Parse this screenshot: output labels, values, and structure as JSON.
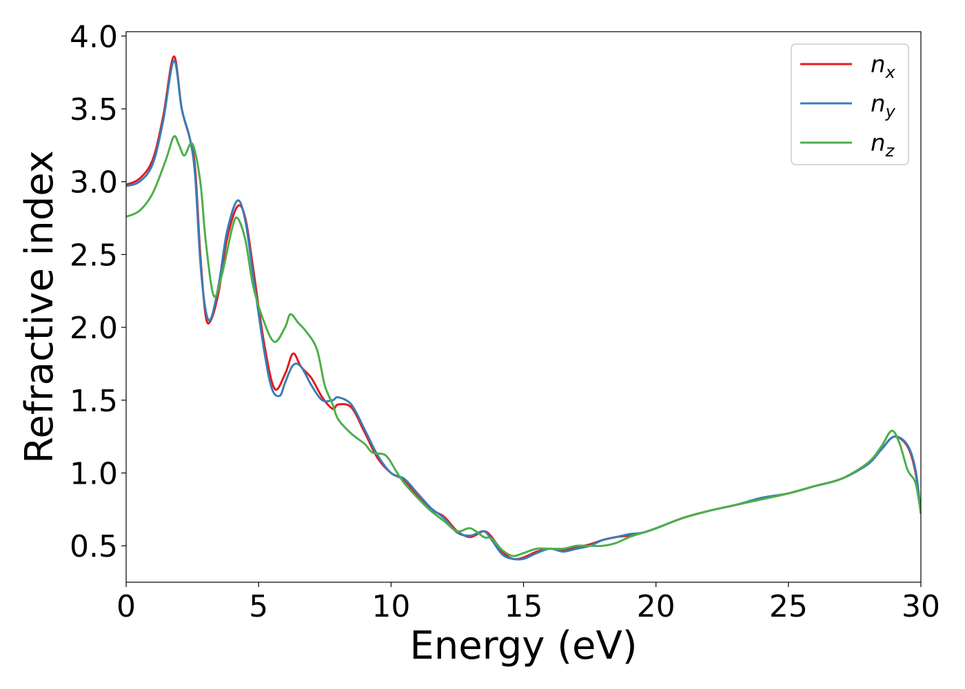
{
  "chart_data": {
    "type": "line",
    "title": "",
    "xlabel": "Energy (eV)",
    "ylabel": "Refractive index",
    "xlim": [
      0,
      30
    ],
    "ylim": [
      0.25,
      4.03
    ],
    "xticks": [
      0,
      5,
      10,
      15,
      20,
      25,
      30
    ],
    "xtick_labels": [
      "0",
      "5",
      "10",
      "15",
      "20",
      "25",
      "30"
    ],
    "yticks": [
      0.5,
      1.0,
      1.5,
      2.0,
      2.5,
      3.0,
      3.5,
      4.0
    ],
    "ytick_labels": [
      "0.5",
      "1.0",
      "1.5",
      "2.0",
      "2.5",
      "3.0",
      "3.5",
      "4.0"
    ],
    "grid": false,
    "legend_position": "top-right",
    "series": [
      {
        "name": "n_x",
        "label_main": "n",
        "label_sub": "x",
        "color": "#e41a1c",
        "points": [
          [
            0,
            2.98
          ],
          [
            0.5,
            3.02
          ],
          [
            1.0,
            3.15
          ],
          [
            1.4,
            3.45
          ],
          [
            1.8,
            3.86
          ],
          [
            2.1,
            3.5
          ],
          [
            2.4,
            3.3
          ],
          [
            2.6,
            3.1
          ],
          [
            2.8,
            2.5
          ],
          [
            3.0,
            2.08
          ],
          [
            3.2,
            2.05
          ],
          [
            3.5,
            2.25
          ],
          [
            3.8,
            2.6
          ],
          [
            4.2,
            2.83
          ],
          [
            4.5,
            2.75
          ],
          [
            4.8,
            2.4
          ],
          [
            5.2,
            1.9
          ],
          [
            5.6,
            1.58
          ],
          [
            6.0,
            1.68
          ],
          [
            6.3,
            1.82
          ],
          [
            6.6,
            1.73
          ],
          [
            7.0,
            1.65
          ],
          [
            7.4,
            1.52
          ],
          [
            7.8,
            1.44
          ],
          [
            8.0,
            1.47
          ],
          [
            8.5,
            1.45
          ],
          [
            9.0,
            1.28
          ],
          [
            9.5,
            1.1
          ],
          [
            10.0,
            1.0
          ],
          [
            10.5,
            0.95
          ],
          [
            11.0,
            0.84
          ],
          [
            11.5,
            0.75
          ],
          [
            12.0,
            0.7
          ],
          [
            12.5,
            0.6
          ],
          [
            13.0,
            0.56
          ],
          [
            13.5,
            0.6
          ],
          [
            13.8,
            0.56
          ],
          [
            14.2,
            0.46
          ],
          [
            14.6,
            0.41
          ],
          [
            15.0,
            0.42
          ],
          [
            15.5,
            0.46
          ],
          [
            16.0,
            0.48
          ],
          [
            16.5,
            0.47
          ],
          [
            17.0,
            0.49
          ],
          [
            17.5,
            0.51
          ],
          [
            18.0,
            0.54
          ],
          [
            18.5,
            0.56
          ],
          [
            19.0,
            0.57
          ],
          [
            19.5,
            0.59
          ],
          [
            20,
            0.62
          ],
          [
            21,
            0.69
          ],
          [
            22,
            0.74
          ],
          [
            23,
            0.78
          ],
          [
            24,
            0.82
          ],
          [
            25,
            0.86
          ],
          [
            26,
            0.91
          ],
          [
            27,
            0.96
          ],
          [
            28,
            1.06
          ],
          [
            28.5,
            1.16
          ],
          [
            29.0,
            1.25
          ],
          [
            29.5,
            1.18
          ],
          [
            29.8,
            1.0
          ],
          [
            30,
            0.72
          ]
        ]
      },
      {
        "name": "n_y",
        "label_main": "n",
        "label_sub": "y",
        "color": "#377eb8",
        "points": [
          [
            0,
            2.97
          ],
          [
            0.5,
            3.0
          ],
          [
            1.0,
            3.12
          ],
          [
            1.4,
            3.42
          ],
          [
            1.8,
            3.83
          ],
          [
            2.1,
            3.5
          ],
          [
            2.4,
            3.3
          ],
          [
            2.6,
            3.05
          ],
          [
            2.8,
            2.45
          ],
          [
            3.0,
            2.12
          ],
          [
            3.2,
            2.06
          ],
          [
            3.5,
            2.3
          ],
          [
            3.8,
            2.65
          ],
          [
            4.2,
            2.87
          ],
          [
            4.5,
            2.73
          ],
          [
            4.8,
            2.35
          ],
          [
            5.2,
            1.85
          ],
          [
            5.5,
            1.58
          ],
          [
            5.8,
            1.53
          ],
          [
            6.0,
            1.62
          ],
          [
            6.3,
            1.74
          ],
          [
            6.6,
            1.73
          ],
          [
            7.0,
            1.6
          ],
          [
            7.4,
            1.5
          ],
          [
            7.8,
            1.5
          ],
          [
            8.0,
            1.52
          ],
          [
            8.5,
            1.47
          ],
          [
            9.0,
            1.3
          ],
          [
            9.5,
            1.12
          ],
          [
            10.0,
            1.0
          ],
          [
            10.5,
            0.96
          ],
          [
            11.0,
            0.86
          ],
          [
            11.5,
            0.76
          ],
          [
            12.0,
            0.69
          ],
          [
            12.5,
            0.59
          ],
          [
            13.0,
            0.57
          ],
          [
            13.5,
            0.6
          ],
          [
            13.8,
            0.54
          ],
          [
            14.2,
            0.44
          ],
          [
            14.6,
            0.41
          ],
          [
            15.0,
            0.41
          ],
          [
            15.5,
            0.45
          ],
          [
            16.0,
            0.48
          ],
          [
            16.5,
            0.46
          ],
          [
            17.0,
            0.48
          ],
          [
            17.5,
            0.5
          ],
          [
            18.0,
            0.54
          ],
          [
            18.5,
            0.56
          ],
          [
            19.0,
            0.58
          ],
          [
            19.5,
            0.59
          ],
          [
            20,
            0.62
          ],
          [
            21,
            0.69
          ],
          [
            22,
            0.74
          ],
          [
            23,
            0.78
          ],
          [
            24,
            0.83
          ],
          [
            25,
            0.86
          ],
          [
            26,
            0.91
          ],
          [
            27,
            0.96
          ],
          [
            28,
            1.06
          ],
          [
            28.5,
            1.16
          ],
          [
            29.0,
            1.25
          ],
          [
            29.5,
            1.19
          ],
          [
            29.8,
            1.02
          ],
          [
            30,
            0.72
          ]
        ]
      },
      {
        "name": "n_z",
        "label_main": "n",
        "label_sub": "z",
        "color": "#4daf4a",
        "points": [
          [
            0,
            2.76
          ],
          [
            0.5,
            2.8
          ],
          [
            1.0,
            2.92
          ],
          [
            1.5,
            3.15
          ],
          [
            1.8,
            3.31
          ],
          [
            2.0,
            3.25
          ],
          [
            2.2,
            3.18
          ],
          [
            2.5,
            3.26
          ],
          [
            2.8,
            3.0
          ],
          [
            3.0,
            2.6
          ],
          [
            3.3,
            2.22
          ],
          [
            3.6,
            2.35
          ],
          [
            4.0,
            2.68
          ],
          [
            4.2,
            2.75
          ],
          [
            4.5,
            2.6
          ],
          [
            4.8,
            2.28
          ],
          [
            5.2,
            2.04
          ],
          [
            5.6,
            1.9
          ],
          [
            6.0,
            2.0
          ],
          [
            6.2,
            2.09
          ],
          [
            6.5,
            2.03
          ],
          [
            6.8,
            1.97
          ],
          [
            7.2,
            1.85
          ],
          [
            7.5,
            1.6
          ],
          [
            7.8,
            1.47
          ],
          [
            8.0,
            1.37
          ],
          [
            8.5,
            1.27
          ],
          [
            9.0,
            1.2
          ],
          [
            9.3,
            1.14
          ],
          [
            9.8,
            1.12
          ],
          [
            10.2,
            1.01
          ],
          [
            10.5,
            0.93
          ],
          [
            11.0,
            0.83
          ],
          [
            11.5,
            0.74
          ],
          [
            12.0,
            0.67
          ],
          [
            12.5,
            0.6
          ],
          [
            13.0,
            0.62
          ],
          [
            13.5,
            0.56
          ],
          [
            13.8,
            0.55
          ],
          [
            14.2,
            0.47
          ],
          [
            14.6,
            0.43
          ],
          [
            15.0,
            0.45
          ],
          [
            15.5,
            0.48
          ],
          [
            16.0,
            0.48
          ],
          [
            16.5,
            0.48
          ],
          [
            17.0,
            0.5
          ],
          [
            17.5,
            0.5
          ],
          [
            18.0,
            0.5
          ],
          [
            18.5,
            0.52
          ],
          [
            19.0,
            0.56
          ],
          [
            19.5,
            0.59
          ],
          [
            20,
            0.62
          ],
          [
            21,
            0.69
          ],
          [
            22,
            0.74
          ],
          [
            23,
            0.78
          ],
          [
            24,
            0.82
          ],
          [
            25,
            0.86
          ],
          [
            26,
            0.91
          ],
          [
            27,
            0.96
          ],
          [
            28,
            1.07
          ],
          [
            28.5,
            1.18
          ],
          [
            28.9,
            1.29
          ],
          [
            29.2,
            1.2
          ],
          [
            29.5,
            1.02
          ],
          [
            29.8,
            0.93
          ],
          [
            30,
            0.72
          ]
        ]
      }
    ]
  }
}
